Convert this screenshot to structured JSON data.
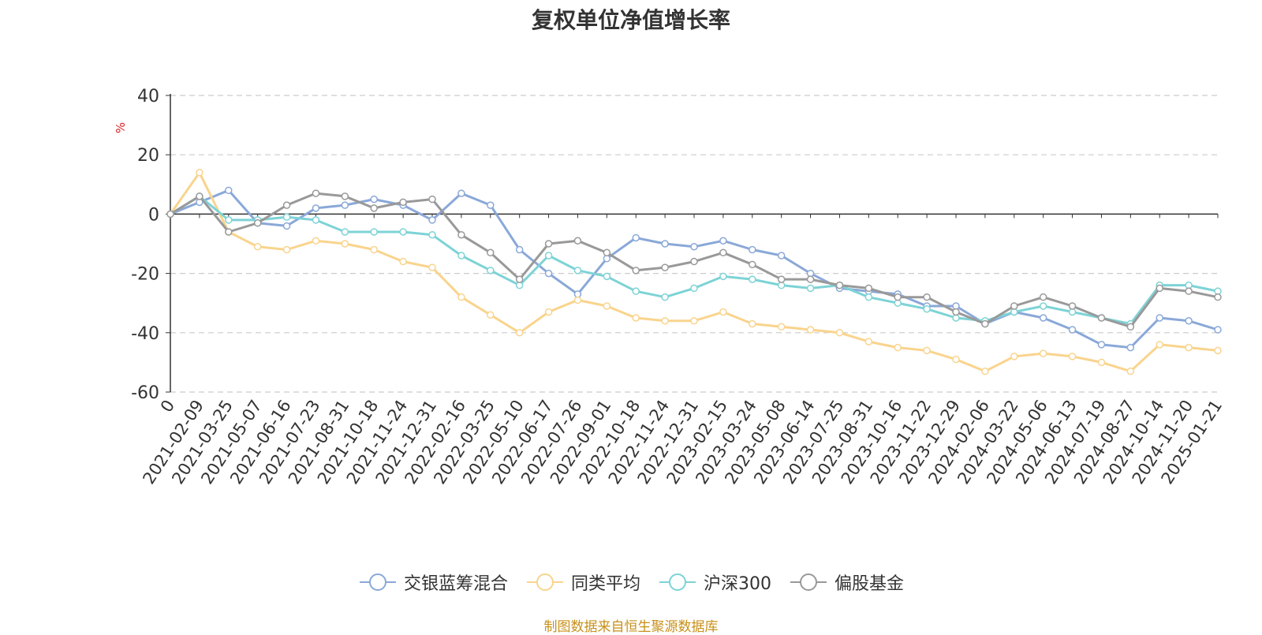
{
  "chart_data": {
    "type": "line",
    "title": "复权单位净值增长率",
    "ylabel": "%",
    "ylim": [
      -60,
      40
    ],
    "yticks": [
      40,
      20,
      0,
      -20,
      -40,
      -60
    ],
    "x_tick_labels": [
      "0",
      "2021-02-09",
      "2021-03-25",
      "2021-05-07",
      "2021-06-16",
      "2021-07-23",
      "2021-08-31",
      "2021-10-18",
      "2021-11-24",
      "2021-12-31",
      "2022-02-16",
      "2022-03-25",
      "2022-05-10",
      "2022-06-17",
      "2022-07-26",
      "2022-09-01",
      "2022-10-18",
      "2022-11-24",
      "2022-12-31",
      "2023-02-15",
      "2023-03-24",
      "2023-05-08",
      "2023-06-14",
      "2023-07-25",
      "2023-08-31",
      "2023-10-16",
      "2023-11-22",
      "2023-12-29",
      "2024-02-06",
      "2024-03-22",
      "2024-05-06",
      "2024-06-13",
      "2024-07-19",
      "2024-08-27",
      "2024-10-14",
      "2024-11-20",
      "2025-01-21"
    ],
    "grid": true,
    "legend_position": "bottom",
    "series": [
      {
        "name": "交银蓝筹混合",
        "color": "#8aa8d8",
        "values": [
          0,
          4,
          8,
          -3,
          -4,
          2,
          3,
          5,
          3,
          -2,
          7,
          3,
          -12,
          -20,
          -27,
          -15,
          -8,
          -10,
          -11,
          -9,
          -12,
          -14,
          -20,
          -25,
          -26,
          -27,
          -31,
          -31,
          -37,
          -33,
          -35,
          -39,
          -44,
          -45,
          -35,
          -36,
          -39
        ]
      },
      {
        "name": "同类平均",
        "color": "#f9d48d",
        "values": [
          0,
          14,
          -6,
          -11,
          -12,
          -9,
          -10,
          -12,
          -16,
          -18,
          -28,
          -34,
          -40,
          -33,
          -29,
          -31,
          -35,
          -36,
          -36,
          -33,
          -37,
          -38,
          -39,
          -40,
          -43,
          -45,
          -46,
          -49,
          -53,
          -48,
          -47,
          -48,
          -50,
          -53,
          -44,
          -45,
          -46
        ]
      },
      {
        "name": "沪深300",
        "color": "#7dd3d6",
        "values": [
          0,
          6,
          -2,
          -2,
          -1,
          -2,
          -6,
          -6,
          -6,
          -7,
          -14,
          -19,
          -24,
          -14,
          -19,
          -21,
          -26,
          -28,
          -25,
          -21,
          -22,
          -24,
          -25,
          -24,
          -28,
          -30,
          -32,
          -35,
          -36,
          -33,
          -31,
          -33,
          -35,
          -37,
          -24,
          -24,
          -26
        ]
      },
      {
        "name": "偏股基金",
        "color": "#999999",
        "values": [
          0,
          6,
          -6,
          -3,
          3,
          7,
          6,
          2,
          4,
          5,
          -7,
          -13,
          -22,
          -10,
          -9,
          -13,
          -19,
          -18,
          -16,
          -13,
          -17,
          -22,
          -22,
          -24,
          -25,
          -28,
          -28,
          -33,
          -37,
          -31,
          -28,
          -31,
          -35,
          -38,
          -25,
          -26,
          -28
        ]
      }
    ]
  },
  "source_note": "制图数据来自恒生聚源数据库"
}
